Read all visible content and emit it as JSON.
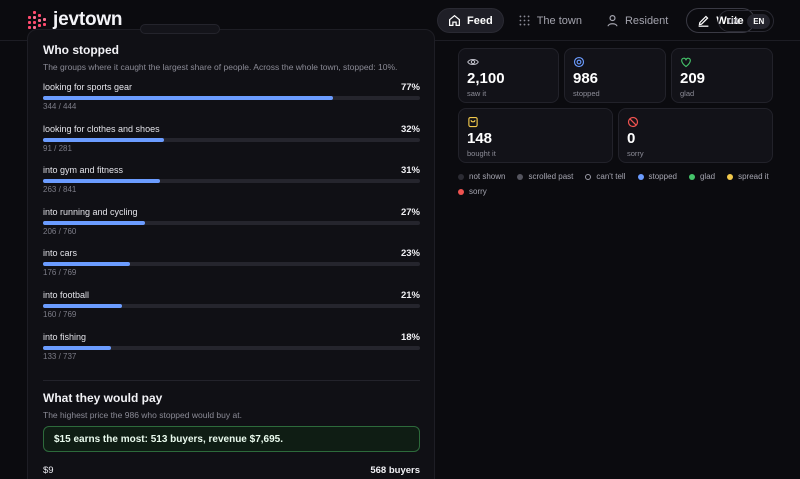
{
  "brand": {
    "name": "jevtown"
  },
  "nav": {
    "feed": "Feed",
    "town": "The town",
    "resident": "Resident",
    "write": "Write"
  },
  "lang": {
    "ua": "UA",
    "en": "EN",
    "selected": "EN"
  },
  "who_stopped": {
    "title": "Who stopped",
    "subtitle": "The groups where it caught the largest share of people. Across the whole town, stopped: 10%.",
    "groups": [
      {
        "label": "looking for sports gear",
        "pct": "77%",
        "fraction": 0.77,
        "count": "344 / 444"
      },
      {
        "label": "looking for clothes and shoes",
        "pct": "32%",
        "fraction": 0.32,
        "count": "91 / 281"
      },
      {
        "label": "into gym and fitness",
        "pct": "31%",
        "fraction": 0.31,
        "count": "263 / 841"
      },
      {
        "label": "into running and cycling",
        "pct": "27%",
        "fraction": 0.27,
        "count": "206 / 760"
      },
      {
        "label": "into cars",
        "pct": "23%",
        "fraction": 0.23,
        "count": "176 / 769"
      },
      {
        "label": "into football",
        "pct": "21%",
        "fraction": 0.21,
        "count": "160 / 769"
      },
      {
        "label": "into fishing",
        "pct": "18%",
        "fraction": 0.18,
        "count": "133 / 737"
      }
    ]
  },
  "pay": {
    "title": "What they would pay",
    "subtitle": "The highest price the 986 who stopped would buy at.",
    "callout": "$15 earns the most: 513 buyers, revenue $7,695.",
    "first_price": {
      "label": "$9",
      "buyers": "568 buyers",
      "fraction": 1.0
    }
  },
  "stats": [
    {
      "icon": "eye-icon",
      "value": "2,100",
      "label": "saw it",
      "color": "#bdbdc6"
    },
    {
      "icon": "target-icon",
      "value": "986",
      "label": "stopped",
      "color": "#6b9cff"
    },
    {
      "icon": "heart-icon",
      "value": "209",
      "label": "glad",
      "color": "#45c46a"
    },
    {
      "icon": "shopping-bag-icon",
      "value": "148",
      "label": "bought it",
      "color": "#f2c94c"
    },
    {
      "icon": "prohibited-icon",
      "value": "0",
      "label": "sorry",
      "color": "#ef5350"
    }
  ],
  "legend": [
    {
      "label": "not shown",
      "color": "#2b2b33",
      "ring": false
    },
    {
      "label": "scrolled past",
      "color": "#55555f",
      "ring": false
    },
    {
      "label": "can't tell",
      "color": "#9a9aa5",
      "ring": true
    },
    {
      "label": "stopped",
      "color": "#6b9cff",
      "ring": false
    },
    {
      "label": "glad",
      "color": "#45c46a",
      "ring": false
    },
    {
      "label": "spread it",
      "color": "#f2c94c",
      "ring": false
    },
    {
      "label": "sorry",
      "color": "#ef5350",
      "ring": false
    }
  ]
}
